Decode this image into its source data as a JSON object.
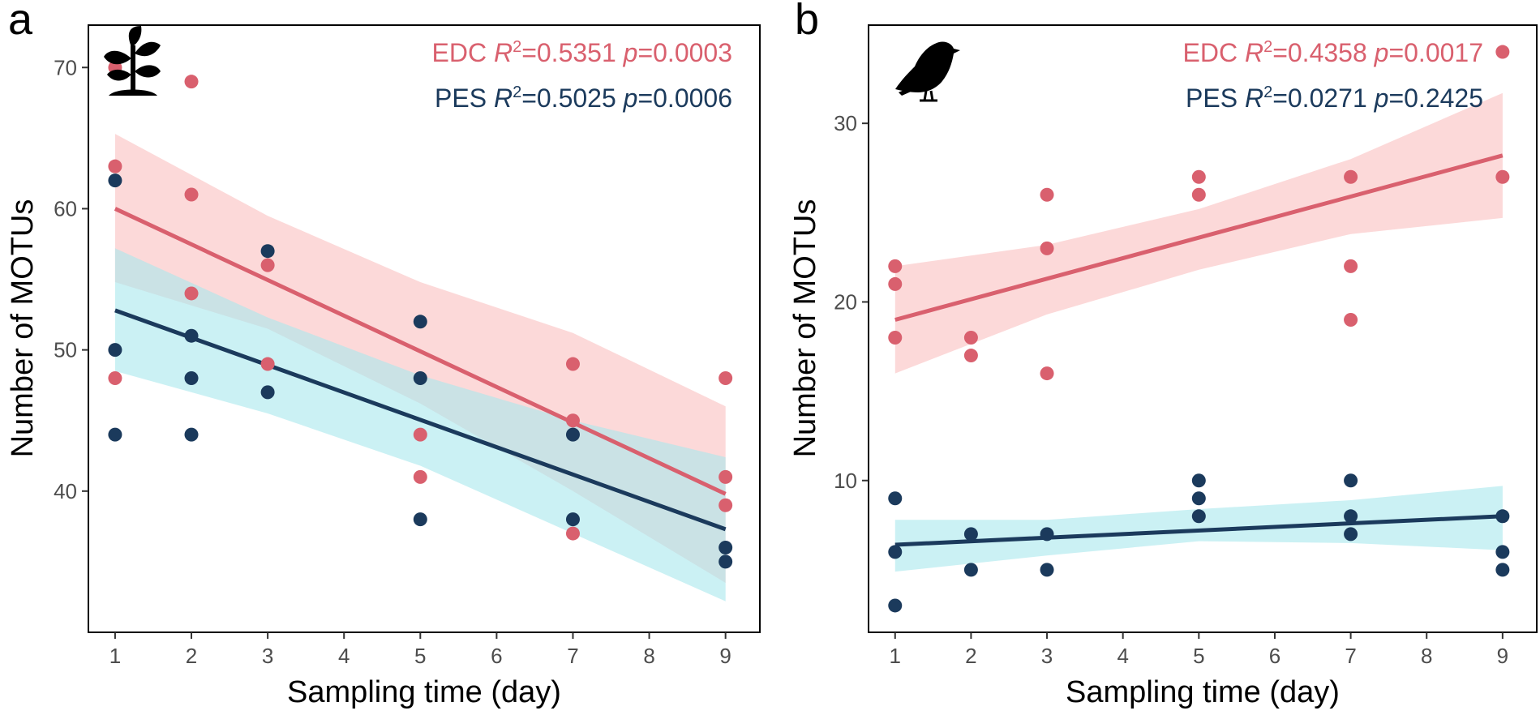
{
  "figure": {
    "colors": {
      "edc": "#d9606e",
      "edc_band": "#fbd2d2",
      "pes": "#1b3a5c",
      "pes_band": "#a8e8ec",
      "pes_point_inside": "#17607e"
    }
  },
  "chart_data": [
    {
      "type": "scatter",
      "panel": "a",
      "icon": "plant-seedling-icon",
      "xlabel": "Sampling time (day)",
      "ylabel": "Number of MOTUs",
      "xlim": [
        0.65,
        9.45
      ],
      "ylim": [
        30,
        73
      ],
      "xticks": [
        1,
        2,
        3,
        4,
        5,
        6,
        7,
        8,
        9
      ],
      "yticks": [
        40,
        50,
        60,
        70
      ],
      "grid": false,
      "legend": "top-right",
      "stats": [
        {
          "series": "EDC",
          "label": "EDC",
          "r2_prefix": "R",
          "r2_sup": "2",
          "r2_value": "=0.5351",
          "p_prefix": "p",
          "p_value": "=0.0003"
        },
        {
          "series": "PES",
          "label": "PES",
          "r2_prefix": "R",
          "r2_sup": "2",
          "r2_value": "=0.5025",
          "p_prefix": "p",
          "p_value": "=0.0006"
        }
      ],
      "series": [
        {
          "name": "EDC",
          "x": [
            1,
            1,
            1,
            2,
            2,
            2,
            3,
            3,
            5,
            5,
            7,
            7,
            7,
            9,
            9,
            9
          ],
          "y": [
            70,
            63,
            48,
            69,
            61,
            54,
            56,
            49,
            44,
            41,
            49,
            45,
            37,
            48,
            41,
            39
          ],
          "fit": {
            "x": [
              1,
              9
            ],
            "y": [
              60.0,
              39.8
            ]
          },
          "band": {
            "x": [
              1,
              3,
              5,
              7,
              9
            ],
            "upper": [
              65.3,
              59.5,
              54.8,
              51.2,
              46.0
            ],
            "lower": [
              54.8,
              51.5,
              46.2,
              40.0,
              33.5
            ]
          }
        },
        {
          "name": "PES",
          "x": [
            1,
            1,
            1,
            2,
            2,
            2,
            3,
            3,
            5,
            5,
            5,
            7,
            7,
            9,
            9
          ],
          "y": [
            62,
            50,
            44,
            51,
            48,
            44,
            57,
            47,
            52,
            48,
            38,
            44,
            38,
            36,
            35
          ],
          "fit": {
            "x": [
              1,
              9
            ],
            "y": [
              52.8,
              37.3
            ]
          },
          "band": {
            "x": [
              1,
              3,
              5,
              7,
              9
            ],
            "upper": [
              57.2,
              52.3,
              48.2,
              45.0,
              42.4
            ],
            "lower": [
              48.5,
              45.5,
              41.8,
              37.0,
              32.2
            ]
          }
        }
      ]
    },
    {
      "type": "scatter",
      "panel": "b",
      "icon": "bird-icon",
      "xlabel": "Sampling time (day)",
      "ylabel": "Number of MOTUs",
      "xlim": [
        0.65,
        9.45
      ],
      "ylim": [
        1.5,
        35.5
      ],
      "xticks": [
        1,
        2,
        3,
        4,
        5,
        6,
        7,
        8,
        9
      ],
      "yticks": [
        10,
        20,
        30
      ],
      "grid": false,
      "legend": "top-right",
      "stats": [
        {
          "series": "EDC",
          "label": "EDC",
          "r2_prefix": "R",
          "r2_sup": "2",
          "r2_value": "=0.4358",
          "p_prefix": "p",
          "p_value": "=0.0017"
        },
        {
          "series": "PES",
          "label": "PES",
          "r2_prefix": "R",
          "r2_sup": "2",
          "r2_value": "=0.0271",
          "p_prefix": "p",
          "p_value": "=0.2425"
        }
      ],
      "series": [
        {
          "name": "EDC",
          "x": [
            1,
            1,
            1,
            2,
            2,
            3,
            3,
            3,
            5,
            5,
            7,
            7,
            7,
            9,
            9
          ],
          "y": [
            22,
            21,
            18,
            18,
            17,
            26,
            23,
            16,
            27,
            26,
            27,
            22,
            19,
            34,
            27
          ],
          "fit": {
            "x": [
              1,
              9
            ],
            "y": [
              19.0,
              28.2
            ]
          },
          "band": {
            "x": [
              1,
              3,
              5,
              7,
              9
            ],
            "upper": [
              22.0,
              23.2,
              25.2,
              28.0,
              31.7
            ],
            "lower": [
              16.0,
              19.3,
              21.8,
              23.8,
              24.7
            ]
          }
        },
        {
          "name": "PES",
          "x": [
            1,
            1,
            1,
            2,
            2,
            3,
            3,
            5,
            5,
            5,
            7,
            7,
            7,
            9,
            9,
            9
          ],
          "y": [
            9,
            6,
            3,
            7,
            5,
            7,
            5,
            10,
            9,
            8,
            10,
            8,
            7,
            8,
            6,
            5
          ],
          "fit": {
            "x": [
              1,
              9
            ],
            "y": [
              6.4,
              8.0
            ]
          },
          "band": {
            "x": [
              1,
              3,
              5,
              7,
              9
            ],
            "upper": [
              7.8,
              7.8,
              8.4,
              8.9,
              9.7
            ],
            "lower": [
              4.9,
              5.8,
              6.6,
              6.5,
              6.1
            ]
          }
        }
      ]
    }
  ]
}
